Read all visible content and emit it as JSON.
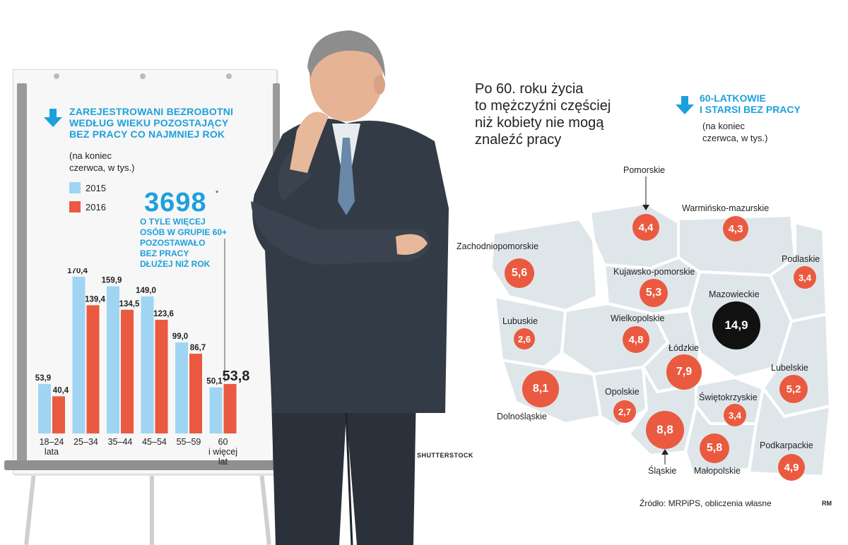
{
  "chart_data": [
    {
      "type": "bar",
      "title": "ZAREJESTROWANI BEZROBOTNI WEDŁUG WIEKU POZOSTAJĄCY BEZ PRACY CO NAJMNIEJ ROK",
      "subtitle": "(na koniec czerwca, w tys.)",
      "categories": [
        "18–24 lata",
        "25–34",
        "35–44",
        "45–54",
        "55–59",
        "60 i więcej lat"
      ],
      "series": [
        {
          "name": "2015",
          "values": [
            53.9,
            170.4,
            159.9,
            149.0,
            99.0,
            50.1
          ],
          "labels": [
            "53,9",
            "170,4",
            "159,9",
            "149,0",
            "99,0",
            "50,1"
          ]
        },
        {
          "name": "2016",
          "values": [
            40.4,
            139.4,
            134.5,
            123.6,
            86.7,
            53.8
          ],
          "labels": [
            "40,4",
            "139,4",
            "134,5",
            "123,6",
            "86,7",
            "53,8"
          ]
        }
      ],
      "ylim": [
        0,
        170.4
      ],
      "legend": "top-left"
    },
    {
      "type": "map-bubble",
      "title": "60-LATKOWIE I STARSI BEZ PRACY",
      "subtitle": "(na koniec czerwca, w tys.)",
      "regions": [
        {
          "name": "Pomorskie",
          "value": 4.4,
          "label": "4,4"
        },
        {
          "name": "Warmińsko-mazurskie",
          "value": 4.3,
          "label": "4,3"
        },
        {
          "name": "Zachodniopomorskie",
          "value": 5.6,
          "label": "5,6"
        },
        {
          "name": "Podlaskie",
          "value": 3.4,
          "label": "3,4"
        },
        {
          "name": "Kujawsko-pomorskie",
          "value": 5.3,
          "label": "5,3"
        },
        {
          "name": "Mazowieckie",
          "value": 14.9,
          "label": "14,9"
        },
        {
          "name": "Lubuskie",
          "value": 2.6,
          "label": "2,6"
        },
        {
          "name": "Wielkopolskie",
          "value": 4.8,
          "label": "4,8"
        },
        {
          "name": "Łódzkie",
          "value": 7.9,
          "label": "7,9"
        },
        {
          "name": "Lubelskie",
          "value": 5.2,
          "label": "5,2"
        },
        {
          "name": "Dolnośląskie",
          "value": 8.1,
          "label": "8,1"
        },
        {
          "name": "Opolskie",
          "value": 2.7,
          "label": "2,7"
        },
        {
          "name": "Świętokrzyskie",
          "value": 3.4,
          "label": "3,4"
        },
        {
          "name": "Śląskie",
          "value": 8.8,
          "label": "8,8"
        },
        {
          "name": "Małopolskie",
          "value": 5.8,
          "label": "5,8"
        },
        {
          "name": "Podkarpackie",
          "value": 4.9,
          "label": "4,9"
        }
      ]
    }
  ],
  "left": {
    "title_lines": [
      "ZAREJESTROWANI BEZROBOTNI",
      "WEDŁUG WIEKU POZOSTAJĄCY",
      "BEZ PRACY CO NAJMNIEJ ROK"
    ],
    "subtitle_lines": [
      "(na koniec",
      "czerwca, w tys.)"
    ],
    "legend_2015": "2015",
    "legend_2016": "2016",
    "big_number": "3698",
    "big_star": "*",
    "big_desc_lines": [
      "O TYLE WIĘCEJ",
      "OSÓB W GRUPIE 60+",
      "POZOSTAWAŁO",
      "BEZ PRACY",
      "DŁUŻEJ NIŻ ROK"
    ],
    "cat_labels": [
      [
        "18–24",
        "lata"
      ],
      [
        "25–34"
      ],
      [
        "35–44"
      ],
      [
        "45–54"
      ],
      [
        "55–59"
      ],
      [
        "60",
        "i więcej",
        "lat"
      ]
    ]
  },
  "photo_credit": "SHUTTERSTOCK",
  "right": {
    "headline_lines": [
      "Po 60. roku życia",
      "to mężczyźni częściej",
      "niż kobiety nie mogą",
      "znaleźć pracy"
    ],
    "map_title_lines": [
      "60-LATKOWIE",
      "I STARSI BEZ PRACY"
    ],
    "map_sub_lines": [
      "(na koniec",
      "czerwca, w tys.)"
    ],
    "source": "Źródło: MRPiPS, obliczenia własne",
    "rm": "RM"
  },
  "colors": {
    "blue": "#1ea0dc",
    "bar2015": "#9fd5f3",
    "bar2016": "#ea5a40",
    "map_fill": "#dfe6ea",
    "bubble": "#ea5a40",
    "bubble_max": "#111111"
  }
}
